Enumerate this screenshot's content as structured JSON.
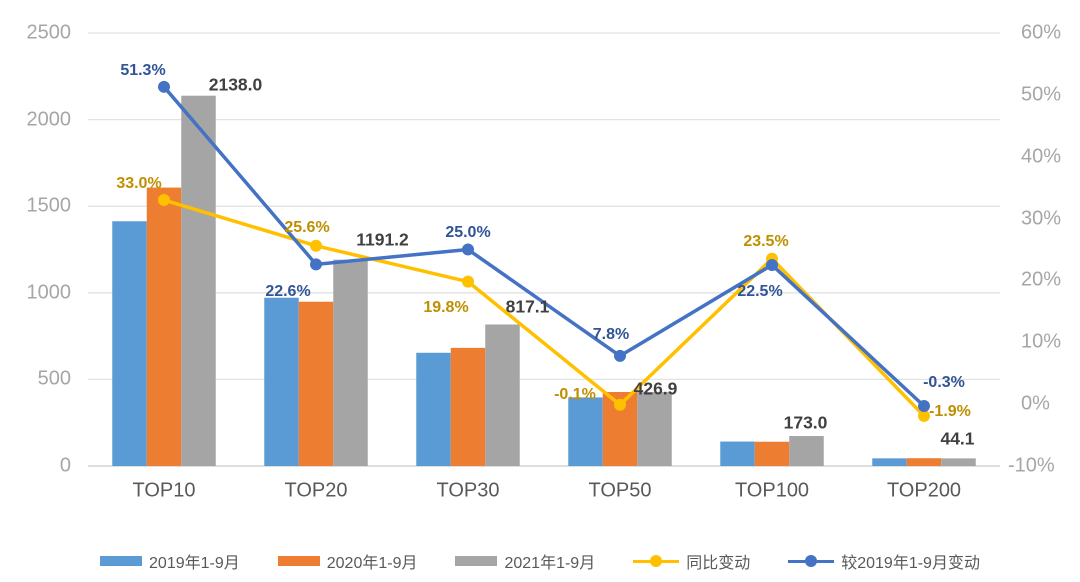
{
  "chart_data": {
    "type": "combo-bar-line",
    "title": "",
    "categories": [
      "TOP10",
      "TOP20",
      "TOP30",
      "TOP50",
      "TOP100",
      "TOP200"
    ],
    "bar_series": [
      {
        "name": "2019年1-9月",
        "color": "#5B9BD5",
        "values": [
          1413.1,
          971.6,
          653.7,
          396.0,
          141.2,
          44.2
        ]
      },
      {
        "name": "2020年1-9月",
        "color": "#ED7D31",
        "values": [
          1607.5,
          948.4,
          682.1,
          427.3,
          140.1,
          45.0
        ]
      },
      {
        "name": "2021年1-9月",
        "color": "#A5A5A5",
        "values": [
          2138.0,
          1191.2,
          817.1,
          426.9,
          173.0,
          44.1
        ],
        "labels": [
          "2138.0",
          "1191.2",
          "817.1",
          "426.9",
          "173.0",
          "44.1"
        ]
      }
    ],
    "line_series": [
      {
        "name": "同比变动",
        "color": "#FFC000",
        "label_color": "#BF8F00",
        "values_pct": [
          33.0,
          25.6,
          19.8,
          -0.1,
          23.5,
          -1.9
        ],
        "labels": [
          "33.0%",
          "25.6%",
          "19.8%",
          "-0.1%",
          "23.5%",
          "-1.9%"
        ]
      },
      {
        "name": "较2019年1-9月变动",
        "color": "#4472C4",
        "label_color": "#305496",
        "values_pct": [
          51.3,
          22.6,
          25.0,
          7.8,
          22.5,
          -0.3
        ],
        "labels": [
          "51.3%",
          "22.6%",
          "25.0%",
          "7.8%",
          "22.5%",
          "-0.3%"
        ]
      }
    ],
    "left_axis": {
      "min": 0,
      "max": 2500,
      "ticks": [
        "0",
        "500",
        "1000",
        "1500",
        "2000",
        "2500"
      ]
    },
    "right_axis": {
      "min": -10,
      "max": 60,
      "ticks": [
        "-10%",
        "0%",
        "10%",
        "20%",
        "30%",
        "40%",
        "50%",
        "60%"
      ]
    },
    "grid": true,
    "legend_position": "bottom",
    "style": {
      "grid_color": "#E2E2E2",
      "baseline_color": "#C9C9C9",
      "axis_text_color": "#A6A6A6",
      "category_text_color": "#595959",
      "value_label_color": "#404040",
      "legend_text_color": "#595959"
    }
  }
}
